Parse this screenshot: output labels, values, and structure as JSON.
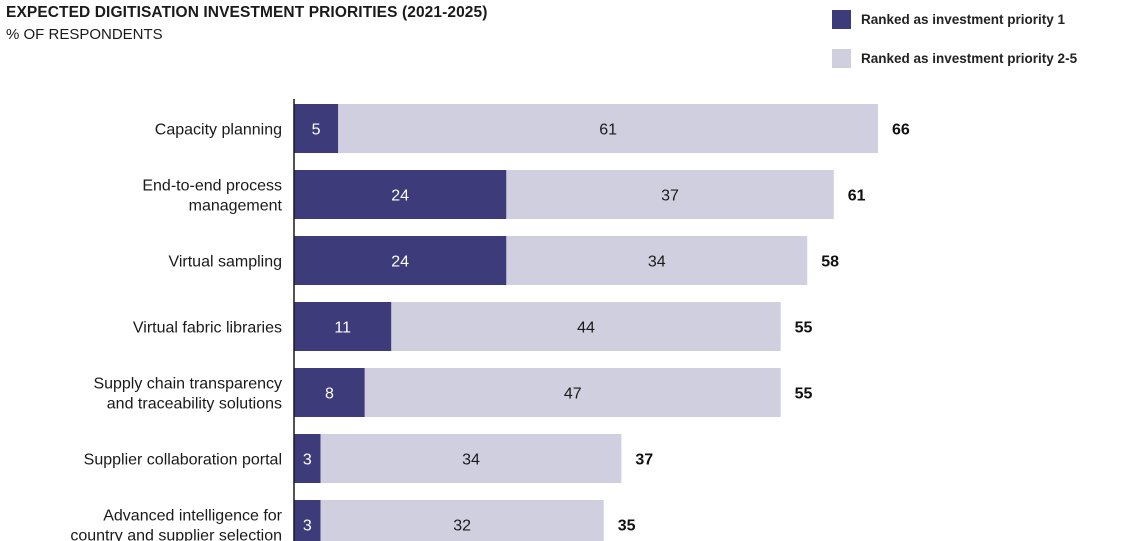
{
  "chart_data": {
    "type": "bar",
    "orientation": "horizontal",
    "stacked": true,
    "title": "EXPECTED DIGITISATION INVESTMENT PRIORITIES (2021-2025)",
    "subtitle": "% OF RESPONDENTS",
    "legend_position": "top-right",
    "categories": [
      [
        "Capacity planning"
      ],
      [
        "End-to-end process",
        "management"
      ],
      [
        "Virtual sampling"
      ],
      [
        "Virtual fabric libraries"
      ],
      [
        "Supply chain transparency",
        "and traceability solutions"
      ],
      [
        "Supplier collaboration portal"
      ],
      [
        "Advanced intelligence for",
        "country and supplier selection"
      ]
    ],
    "series": [
      {
        "name": "Ranked as investment priority 1",
        "color": "#3d3b7a",
        "label_color": "#ffffff",
        "values": [
          5,
          24,
          24,
          11,
          8,
          3,
          3
        ]
      },
      {
        "name": "Ranked as investment priority 2-5",
        "color": "#cfcfdf",
        "label_color": "#1a1a1a",
        "values": [
          61,
          37,
          34,
          44,
          47,
          34,
          32
        ]
      }
    ],
    "totals": [
      66,
      61,
      58,
      55,
      55,
      37,
      35
    ],
    "xlim": [
      0,
      66
    ],
    "grid": false
  }
}
